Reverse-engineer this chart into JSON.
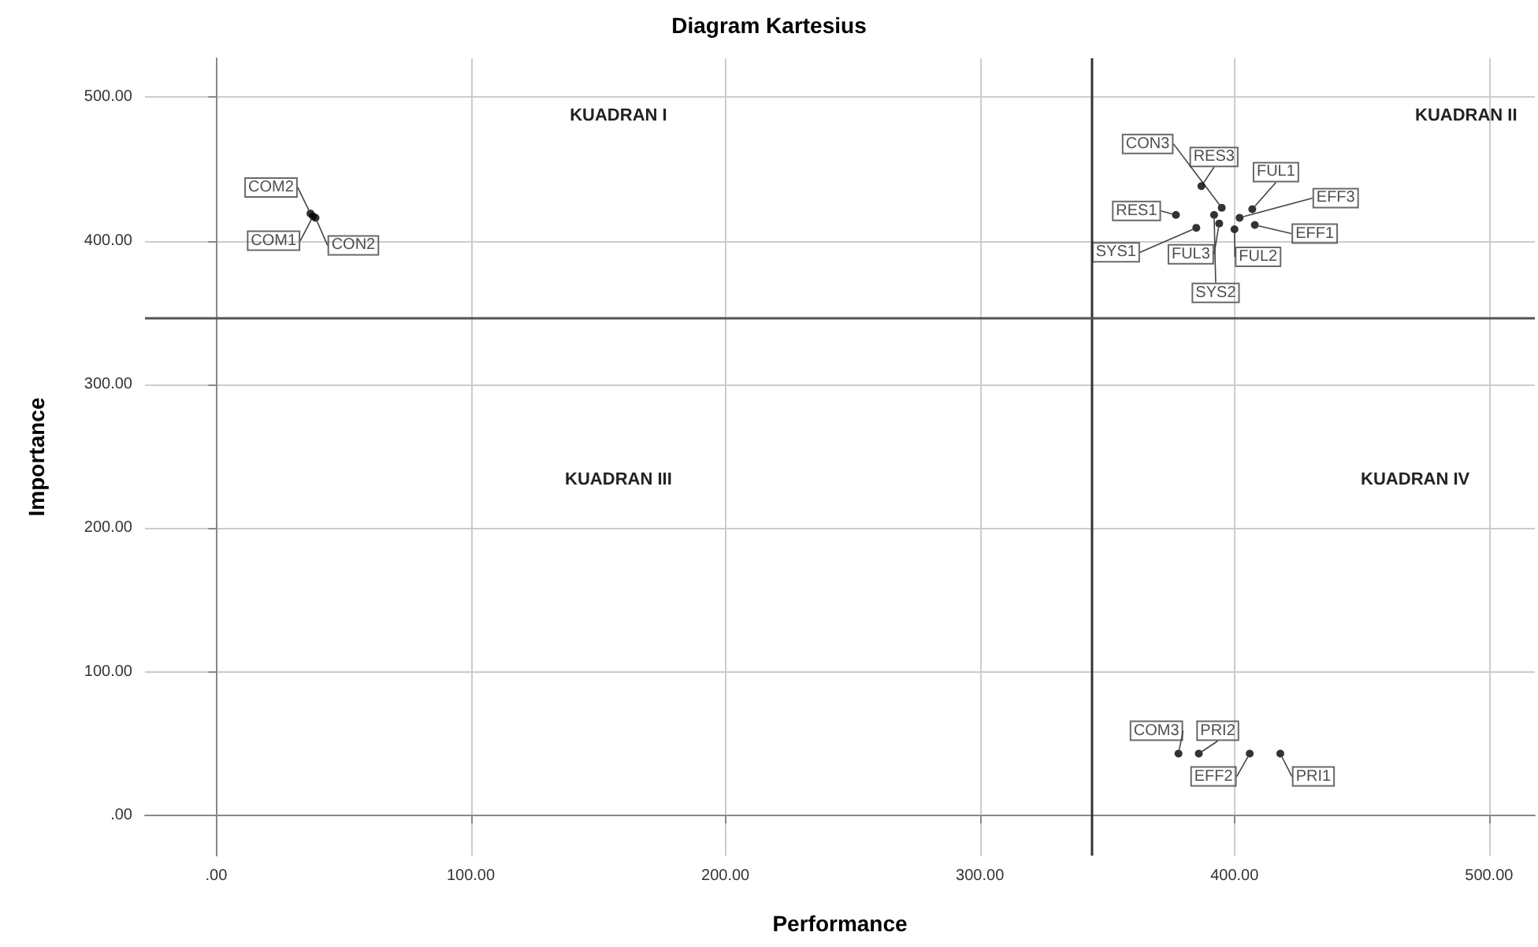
{
  "chart_data": {
    "type": "scatter",
    "title": "Diagram Kartesius",
    "xlabel": "Performance",
    "ylabel": "Importance",
    "series": [
      {
        "color": "#000000",
        "x": [
          37,
          38,
          39,
          387,
          395,
          407,
          402,
          408,
          377,
          385,
          394,
          400,
          392,
          378,
          386,
          406,
          418
        ],
        "values": [
          419,
          417,
          416,
          438,
          423,
          422,
          416,
          411,
          418,
          409,
          412,
          408,
          418,
          43,
          43,
          43,
          43
        ],
        "value_labels": [
          "COM2",
          "COM1",
          "CON2",
          "RES3",
          "CON3",
          "FUL1",
          "EFF3",
          "EFF1",
          "RES1",
          "SYS1",
          "FUL3",
          "FUL2",
          "SYS2",
          "COM3",
          "PRI2",
          "EFF2",
          "PRI1"
        ]
      }
    ],
    "xlim": [
      -28,
      518
    ],
    "ylim": [
      -28,
      527
    ],
    "xticks": [
      {
        "value": 0,
        "label": ".00"
      },
      {
        "value": 100,
        "label": "100.00"
      },
      {
        "value": 200,
        "label": "200.00"
      },
      {
        "value": 300,
        "label": "300.00"
      },
      {
        "value": 400,
        "label": "400.00"
      },
      {
        "value": 500,
        "label": "500.00"
      }
    ],
    "yticks": [
      {
        "value": 0,
        "label": ".00"
      },
      {
        "value": 100,
        "label": "100.00"
      },
      {
        "value": 200,
        "label": "200.00"
      },
      {
        "value": 300,
        "label": "300.00"
      },
      {
        "value": 400,
        "label": "400.00"
      },
      {
        "value": 500,
        "label": "500.00"
      }
    ],
    "ref_lines": [
      {
        "axis": "x",
        "value": 344,
        "color": "#333333"
      },
      {
        "axis": "y",
        "value": 346,
        "color": "#555555"
      }
    ],
    "annotations": [
      "KUADRAN I",
      "KUADRAN II",
      "KUADRAN III",
      "KUADRAN IV"
    ],
    "grid": true,
    "marker": "circle"
  }
}
